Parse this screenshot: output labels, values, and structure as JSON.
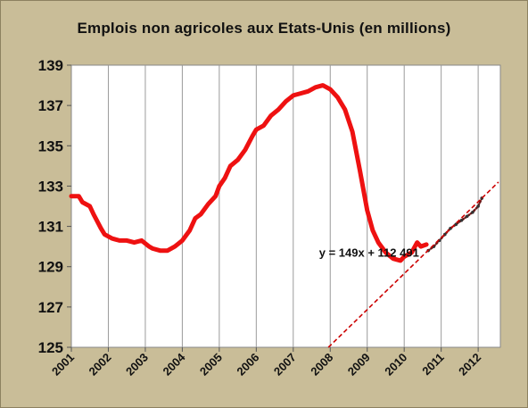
{
  "chart_data": {
    "type": "line",
    "title": "Emplois non agricoles aux Etats-Unis (en millions)",
    "xlabel": "",
    "ylabel": "",
    "ylim": [
      125,
      139
    ],
    "xlim": [
      2001,
      2012.6
    ],
    "y_ticks": [
      "125",
      "127",
      "129",
      "131",
      "133",
      "135",
      "137",
      "139"
    ],
    "x_ticks": [
      "2001",
      "2002",
      "2003",
      "2004",
      "2005",
      "2006",
      "2007",
      "2008",
      "2009",
      "2010",
      "2011",
      "2012"
    ],
    "grid": "vertical",
    "legend": "none",
    "series": [
      {
        "style": "solid-thick",
        "color": "#ee1111",
        "x": [
          2001.0,
          2001.2,
          2001.3,
          2001.5,
          2001.6,
          2001.8,
          2001.9,
          2002.1,
          2002.3,
          2002.5,
          2002.7,
          2002.9,
          2003.1,
          2003.2,
          2003.4,
          2003.6,
          2003.8,
          2004.0,
          2004.2,
          2004.35,
          2004.5,
          2004.7,
          2004.9,
          2005.0,
          2005.15,
          2005.3,
          2005.5,
          2005.7,
          2005.9,
          2006.0,
          2006.2,
          2006.4,
          2006.6,
          2006.8,
          2007.0,
          2007.2,
          2007.4,
          2007.6,
          2007.8,
          2008.0,
          2008.2,
          2008.4,
          2008.6,
          2008.8,
          2009.0,
          2009.15,
          2009.3,
          2009.5,
          2009.7,
          2009.9,
          2010.0,
          2010.2,
          2010.35,
          2010.45,
          2010.6
        ],
        "y": [
          132.5,
          132.5,
          132.2,
          132.0,
          131.6,
          130.9,
          130.6,
          130.4,
          130.3,
          130.3,
          130.2,
          130.3,
          130.0,
          129.9,
          129.8,
          129.8,
          130.0,
          130.3,
          130.8,
          131.4,
          131.6,
          132.1,
          132.5,
          133.0,
          133.4,
          134.0,
          134.3,
          134.8,
          135.5,
          135.8,
          136.0,
          136.5,
          136.8,
          137.2,
          137.5,
          137.6,
          137.7,
          137.9,
          138.0,
          137.8,
          137.4,
          136.8,
          135.7,
          133.8,
          131.8,
          130.8,
          130.2,
          129.7,
          129.4,
          129.3,
          129.5,
          129.7,
          130.2,
          130.0,
          130.1
        ]
      },
      {
        "style": "dotted-dark",
        "color": "#6b1a1a",
        "x": [
          2010.65,
          2010.8,
          2010.95,
          2011.1,
          2011.25,
          2011.4,
          2011.55,
          2011.7,
          2011.85,
          2012.0,
          2012.1
        ],
        "y": [
          129.8,
          130.0,
          130.3,
          130.6,
          130.9,
          131.1,
          131.3,
          131.5,
          131.7,
          132.0,
          132.4
        ]
      },
      {
        "style": "dashed-trend",
        "color": "#cc0000",
        "x": [
          2007.95,
          2012.55
        ],
        "y": [
          125.0,
          133.2
        ]
      }
    ],
    "equation": "y = 149x + 112 491",
    "equation_anchor": [
      2009.05,
      129.5
    ]
  }
}
